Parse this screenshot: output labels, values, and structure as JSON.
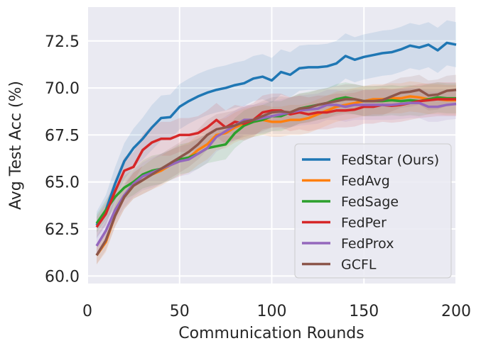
{
  "chart_data": {
    "type": "line",
    "title": "",
    "xlabel": "Communication Rounds",
    "ylabel": "Avg Test Acc (%)",
    "xlim": [
      0,
      200
    ],
    "ylim": [
      59.6,
      74.3
    ],
    "xticks": [
      0,
      50,
      100,
      150,
      200
    ],
    "xtick_labels": [
      "0",
      "50",
      "100",
      "150",
      "200"
    ],
    "yticks": [
      60.0,
      62.5,
      65.0,
      67.5,
      70.0,
      72.5
    ],
    "ytick_labels": [
      "60.0",
      "62.5",
      "65.0",
      "67.5",
      "70.0",
      "72.5"
    ],
    "grid": true,
    "legend_position": "bottom-right",
    "x": [
      5,
      10,
      15,
      20,
      25,
      30,
      35,
      40,
      45,
      50,
      55,
      60,
      65,
      70,
      75,
      80,
      85,
      90,
      95,
      100,
      105,
      110,
      115,
      120,
      125,
      130,
      135,
      140,
      145,
      150,
      155,
      160,
      165,
      170,
      175,
      180,
      185,
      190,
      195,
      200
    ],
    "series": [
      {
        "name": "FedStar (Ours)",
        "color": "#1f77b4",
        "band": 1.2,
        "values": [
          62.7,
          63.5,
          64.9,
          66.1,
          66.8,
          67.3,
          67.9,
          68.4,
          68.45,
          69.0,
          69.3,
          69.55,
          69.75,
          69.9,
          70.0,
          70.15,
          70.25,
          70.5,
          70.6,
          70.4,
          70.85,
          70.7,
          71.05,
          71.1,
          71.1,
          71.15,
          71.3,
          71.7,
          71.5,
          71.65,
          71.75,
          71.85,
          71.9,
          72.05,
          72.25,
          72.15,
          72.3,
          72.0,
          72.4,
          72.3
        ]
      },
      {
        "name": "FedAvg",
        "color": "#ff7f0e",
        "band": 0.8,
        "values": [
          61.1,
          61.8,
          63.2,
          64.2,
          64.8,
          65.1,
          65.4,
          65.6,
          65.9,
          66.1,
          66.3,
          66.7,
          67.0,
          67.5,
          67.6,
          67.9,
          68.1,
          68.2,
          68.3,
          68.2,
          68.2,
          68.3,
          68.3,
          68.4,
          68.6,
          68.8,
          69.0,
          69.1,
          69.2,
          69.3,
          69.4,
          69.4,
          69.45,
          69.45,
          69.55,
          69.5,
          69.4,
          69.4,
          69.35,
          69.35
        ]
      },
      {
        "name": "FedSage",
        "color": "#2ca02c",
        "band": 0.8,
        "values": [
          62.8,
          63.5,
          64.2,
          64.7,
          65.0,
          65.4,
          65.6,
          65.7,
          65.9,
          66.2,
          66.3,
          66.5,
          66.8,
          66.9,
          67.0,
          67.6,
          68.0,
          68.2,
          68.3,
          68.5,
          68.5,
          68.7,
          68.9,
          69.0,
          69.1,
          69.2,
          69.4,
          69.5,
          69.4,
          69.3,
          69.3,
          69.3,
          69.35,
          69.3,
          69.35,
          69.3,
          69.4,
          69.5,
          69.45,
          69.45
        ]
      },
      {
        "name": "FedPer",
        "color": "#d62728",
        "band": 0.9,
        "values": [
          62.6,
          63.3,
          64.5,
          65.6,
          65.8,
          66.7,
          67.1,
          67.3,
          67.3,
          67.5,
          67.5,
          67.6,
          67.9,
          68.3,
          67.9,
          68.2,
          68.1,
          68.3,
          68.7,
          68.8,
          68.8,
          68.6,
          68.7,
          68.6,
          68.7,
          68.7,
          68.8,
          68.8,
          68.85,
          69.0,
          69.0,
          69.1,
          69.05,
          69.1,
          69.2,
          69.3,
          69.35,
          69.4,
          69.4,
          69.4
        ]
      },
      {
        "name": "FedProx",
        "color": "#9467bd",
        "band": 0.8,
        "values": [
          61.6,
          62.4,
          63.5,
          64.3,
          64.9,
          65.3,
          65.5,
          65.7,
          65.9,
          66.1,
          66.2,
          66.5,
          66.8,
          67.4,
          67.7,
          68.0,
          68.3,
          68.3,
          68.4,
          68.5,
          68.6,
          68.7,
          68.8,
          68.85,
          68.9,
          69.1,
          69.1,
          69.0,
          69.1,
          69.1,
          69.1,
          69.1,
          69.1,
          69.15,
          69.2,
          69.2,
          69.0,
          69.0,
          69.1,
          69.15
        ]
      },
      {
        "name": "GCFL",
        "color": "#8c564b",
        "band": 0.8,
        "values": [
          61.1,
          61.9,
          63.2,
          64.2,
          64.8,
          65.1,
          65.4,
          65.7,
          66.0,
          66.3,
          66.6,
          67.0,
          67.5,
          67.8,
          67.9,
          68.0,
          68.2,
          68.3,
          68.5,
          68.7,
          68.75,
          68.7,
          68.9,
          68.95,
          69.1,
          69.2,
          69.3,
          69.4,
          69.4,
          69.3,
          69.3,
          69.35,
          69.55,
          69.75,
          69.8,
          69.9,
          69.6,
          69.65,
          69.85,
          69.9
        ]
      }
    ]
  }
}
